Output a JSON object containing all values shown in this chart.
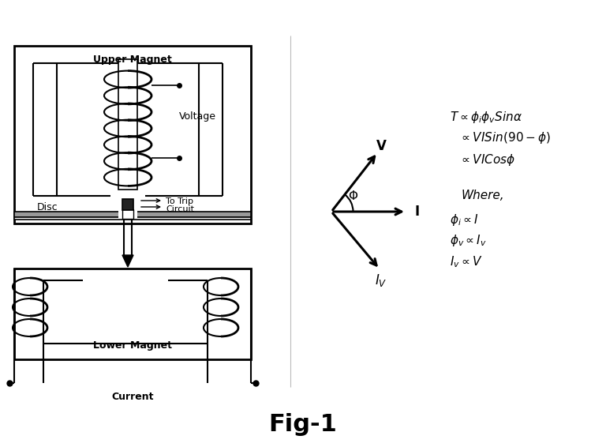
{
  "title": "Fig-1",
  "title_fontsize": 22,
  "title_fontweight": "bold",
  "bg_color": "#ffffff",
  "text_color": "#000000",
  "line_color": "#000000",
  "upper_magnet_label": "Upper Magnet",
  "lower_magnet_label": "Lower Magnet",
  "voltage_label": "Voltage",
  "disc_label": "Disc",
  "current_label": "Current",
  "to_trip_line1": "To Trip",
  "to_trip_line2": "Circuit",
  "eq1": "$T\\propto\\phi_i\\phi_v Sin\\alpha$",
  "eq2": "$\\propto VISin(90-\\phi)$",
  "eq3": "$\\propto VICos\\phi$",
  "where_label": "Where,",
  "eq4": "$\\phi_i\\propto I$",
  "eq5": "$\\phi_v\\propto I_v$",
  "eq6": "$I_v\\propto V$",
  "V_label": "V",
  "I_label": "I",
  "Phi_label": "$\\Phi$",
  "Iv_label": "$I_V$",
  "divider_color": "#cccccc",
  "label_fontsize": 9,
  "eq_fontsize": 11
}
